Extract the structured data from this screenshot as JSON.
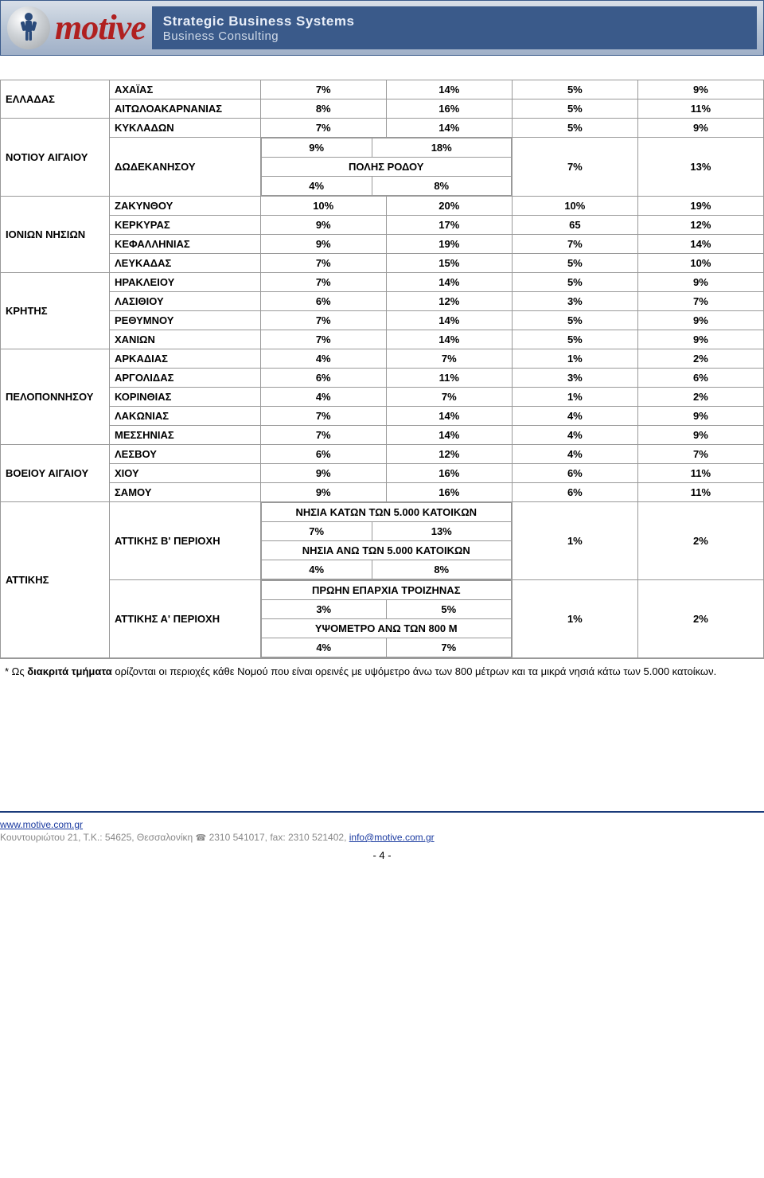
{
  "banner": {
    "logo_text": "motive",
    "line1": "Strategic Business Systems",
    "line2": "Business Consulting"
  },
  "table": {
    "rows": [
      {
        "region": "ΕΛΛΑΔΑΣ",
        "region_rowspan": 2,
        "sub": "ΑΧΑΪΑΣ",
        "c3": "7%",
        "c4": "14%",
        "c5": "5%",
        "c6": "9%"
      },
      {
        "sub": "ΑΙΤΩΛΟΑΚΑΡΝΑΝΙΑΣ",
        "c3": "8%",
        "c4": "16%",
        "c5": "5%",
        "c6": "11%"
      },
      {
        "region": "ΝΟΤΙΟΥ ΑΙΓΑΙΟΥ",
        "region_rowspan": 2,
        "sub": "ΚΥΚΛΑΔΩΝ",
        "c3": "7%",
        "c4": "14%",
        "c5": "5%",
        "c6": "9%"
      },
      {
        "sub": "ΔΩΔΕΚΑΝΗΣΟΥ",
        "nested": "dodecanese",
        "c5": "7%",
        "c6": "13%"
      },
      {
        "region": "ΙΟΝΙΩΝ ΝΗΣΙΩΝ",
        "region_rowspan": 4,
        "sub": "ΖΑΚΥΝΘΟΥ",
        "c3": "10%",
        "c4": "20%",
        "c5": "10%",
        "c6": "19%"
      },
      {
        "sub": "ΚΕΡΚΥΡΑΣ",
        "c3": "9%",
        "c4": "17%",
        "c5": "65",
        "c6": "12%"
      },
      {
        "sub": "ΚΕΦΑΛΛΗΝΙΑΣ",
        "c3": "9%",
        "c4": "19%",
        "c5": "7%",
        "c6": "14%"
      },
      {
        "sub": "ΛΕΥΚΑΔΑΣ",
        "c3": "7%",
        "c4": "15%",
        "c5": "5%",
        "c6": "10%"
      },
      {
        "region": "ΚΡΗΤΗΣ",
        "region_rowspan": 4,
        "sub": "ΗΡΑΚΛΕΙΟΥ",
        "c3": "7%",
        "c4": "14%",
        "c5": "5%",
        "c6": "9%"
      },
      {
        "sub": "ΛΑΣΙΘΙΟΥ",
        "c3": "6%",
        "c4": "12%",
        "c5": "3%",
        "c6": "7%"
      },
      {
        "sub": "ΡΕΘΥΜΝΟΥ",
        "c3": "7%",
        "c4": "14%",
        "c5": "5%",
        "c6": "9%"
      },
      {
        "sub": "ΧΑΝΙΩΝ",
        "c3": "7%",
        "c4": "14%",
        "c5": "5%",
        "c6": "9%"
      },
      {
        "region": "ΠΕΛΟΠΟΝΝΗΣΟΥ",
        "region_rowspan": 5,
        "sub": "ΑΡΚΑΔΙΑΣ",
        "c3": "4%",
        "c4": "7%",
        "c5": "1%",
        "c6": "2%"
      },
      {
        "sub": "ΑΡΓΟΛΙΔΑΣ",
        "c3": "6%",
        "c4": "11%",
        "c5": "3%",
        "c6": "6%"
      },
      {
        "sub": "ΚΟΡΙΝΘΙΑΣ",
        "c3": "4%",
        "c4": "7%",
        "c5": "1%",
        "c6": "2%"
      },
      {
        "sub": "ΛΑΚΩΝΙΑΣ",
        "c3": "7%",
        "c4": "14%",
        "c5": "4%",
        "c6": "9%"
      },
      {
        "sub": "ΜΕΣΣΗΝΙΑΣ",
        "c3": "7%",
        "c4": "14%",
        "c5": "4%",
        "c6": "9%"
      },
      {
        "region": "ΒΟΕΙΟΥ ΑΙΓΑΙΟΥ",
        "region_rowspan": 3,
        "sub": "ΛΕΣΒΟΥ",
        "c3": "6%",
        "c4": "12%",
        "c5": "4%",
        "c6": "7%"
      },
      {
        "sub": "ΧΙΟΥ",
        "c3": "9%",
        "c4": "16%",
        "c5": "6%",
        "c6": "11%"
      },
      {
        "sub": "ΣΑΜΟΥ",
        "c3": "9%",
        "c4": "16%",
        "c5": "6%",
        "c6": "11%"
      },
      {
        "region": "ΑΤΤΙΚΗΣ",
        "region_rowspan": 2,
        "sub": "ΑΤΤΙΚΗΣ Β' ΠΕΡΙΟΧΗ",
        "nested": "attiki_b",
        "c5": "1%",
        "c6": "2%"
      },
      {
        "sub": "ΑΤΤΙΚΗΣ Α' ΠΕΡΙΟΧΗ",
        "nested": "attiki_a",
        "c5": "1%",
        "c6": "2%"
      }
    ],
    "dodecanese": {
      "r1c1": "9%",
      "r1c2": "18%",
      "r2_label": "ΠΟΛΗΣ ΡΟΔΟΥ",
      "r3c1": "4%",
      "r3c2": "8%"
    },
    "attiki_b": {
      "r1_label": "ΝΗΣΙΑ ΚΑΤΩΝ ΤΩΝ 5.000 ΚΑΤΟΙΚΩΝ",
      "r2c1": "7%",
      "r2c2": "13%",
      "r3_label": "ΝΗΣΙΑ ΑΝΩ ΤΩΝ 5.000 ΚΑΤΟΙΚΩΝ",
      "r4c1": "4%",
      "r4c2": "8%"
    },
    "attiki_a": {
      "r1_label": "ΠΡΩΗΝ ΕΠΑΡΧΙΑ ΤΡΟΙΖΗΝΑΣ",
      "r2c1": "3%",
      "r2c2": "5%",
      "r3_label": "ΥΨΟΜΕΤΡΟ ΑΝΩ ΤΩΝ 800 Μ",
      "r4c1": "4%",
      "r4c2": "7%"
    }
  },
  "footnote": {
    "prefix": "* Ως ",
    "bold": "διακριτά τμήματα",
    "rest": " ορίζονται οι περιοχές κάθε Νομού που είναι ορεινές με υψόμετρο άνω των 800 μέτρων και τα μικρά νησιά κάτω των 5.000 κατοίκων."
  },
  "footer": {
    "url": "www.motive.com.gr",
    "addr_prefix": "Κουντουριώτου 21, Τ.Κ.: 54625, Θεσσαλονίκη ",
    "phone": "2310 541017, fax: 2310 521402, ",
    "email": "info@motive.com.gr",
    "page": "- 4 -"
  }
}
